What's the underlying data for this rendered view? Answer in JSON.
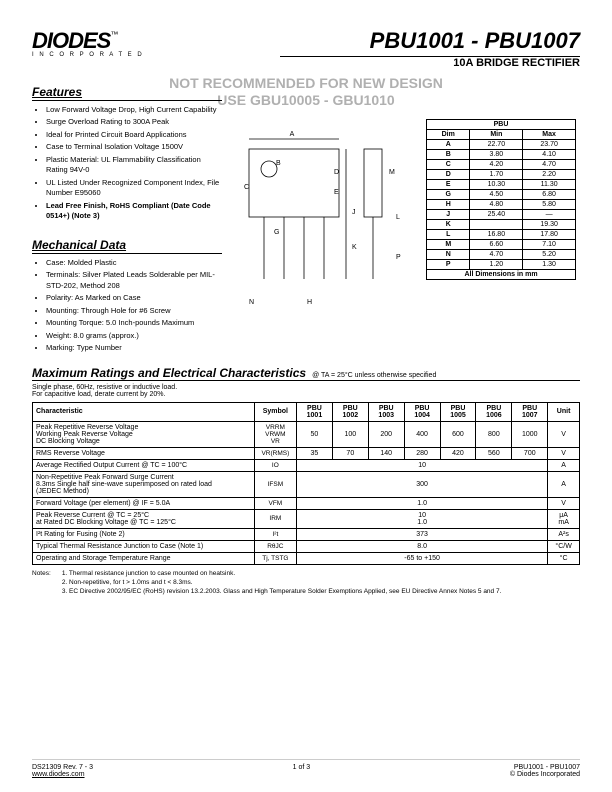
{
  "logo": {
    "name": "DIODES",
    "sub": "I N C O R P O R A T E D",
    "tm": "™"
  },
  "title": "PBU1001 - PBU1007",
  "subtitle": "10A BRIDGE RECTIFIER",
  "watermark1": "NOT RECOMMENDED FOR NEW DESIGN",
  "watermark2": "USE GBU10005 - GBU1010",
  "features_title": "Features",
  "features": [
    "Low Forward Voltage Drop, High Current Capability",
    "Surge Overload Rating to 300A Peak",
    "Ideal for Printed Circuit Board Applications",
    "Case to Terminal Isolation Voltage 1500V",
    "Plastic Material: UL Flammability Classification Rating 94V-0",
    "UL Listed Under Recognized Component Index, File Number E95060",
    "Lead Free Finish, RoHS Compliant (Date Code 0514+) (Note 3)"
  ],
  "mech_title": "Mechanical Data",
  "mech": [
    "Case: Molded Plastic",
    "Terminals: Silver Plated Leads Solderable per MIL-STD-202, Method 208",
    "Polarity: As Marked on Case",
    "Mounting: Through Hole for #6 Screw",
    "Mounting Torque: 5.0 Inch-pounds Maximum",
    "Weight: 8.0 grams (approx.)",
    "Marking: Type Number"
  ],
  "dim_hdr": {
    "name": "PBU",
    "dim": "Dim",
    "min": "Min",
    "max": "Max"
  },
  "dims": [
    {
      "d": "A",
      "min": "22.70",
      "max": "23.70"
    },
    {
      "d": "B",
      "min": "3.80",
      "max": "4.10"
    },
    {
      "d": "C",
      "min": "4.20",
      "max": "4.70"
    },
    {
      "d": "D",
      "min": "1.70",
      "max": "2.20"
    },
    {
      "d": "E",
      "min": "10.30",
      "max": "11.30"
    },
    {
      "d": "G",
      "min": "4.50",
      "max": "6.80"
    },
    {
      "d": "H",
      "min": "4.80",
      "max": "5.80"
    },
    {
      "d": "J",
      "min": "25.40",
      "max": "—"
    },
    {
      "d": "K",
      "min": "",
      "max": "19.30"
    },
    {
      "d": "L",
      "min": "16.80",
      "max": "17.80"
    },
    {
      "d": "M",
      "min": "6.60",
      "max": "7.10"
    },
    {
      "d": "N",
      "min": "4.70",
      "max": "5.20"
    },
    {
      "d": "P",
      "min": "1.20",
      "max": "1.30"
    }
  ],
  "dim_footer": "All Dimensions in mm",
  "ratings_title": "Maximum Ratings and Electrical Characteristics",
  "ratings_cond": "@ TA = 25°C unless otherwise specified",
  "ratings_note": "Single phase, 60Hz, resistive or inductive load.\nFor capacitive load, derate current by 20%.",
  "rt_hdr": {
    "char": "Characteristic",
    "sym": "Symbol",
    "parts": [
      "PBU 1001",
      "PBU 1002",
      "PBU 1003",
      "PBU 1004",
      "PBU 1005",
      "PBU 1006",
      "PBU 1007"
    ],
    "unit": "Unit"
  },
  "rows": [
    {
      "c": "Peak Repetitive Reverse Voltage\nWorking Peak Reverse Voltage\nDC Blocking Voltage",
      "s": "VRRM\nVRWM\nVR",
      "v": [
        "50",
        "100",
        "200",
        "400",
        "600",
        "800",
        "1000"
      ],
      "u": "V"
    },
    {
      "c": "RMS Reverse Voltage",
      "s": "VR(RMS)",
      "v": [
        "35",
        "70",
        "140",
        "280",
        "420",
        "560",
        "700"
      ],
      "u": "V"
    },
    {
      "c": "Average Rectified Output Current               @ TC = 100°C",
      "s": "IO",
      "span": "10",
      "u": "A"
    },
    {
      "c": "Non-Repetitive Peak Forward Surge Current\n  8.3ms Single half sine-wave superimposed on rated load\n  (JEDEC Method)",
      "s": "IFSM",
      "span": "300",
      "u": "A"
    },
    {
      "c": "Forward Voltage (per element)                  @ IF = 5.0A",
      "s": "VFM",
      "span": "1.0",
      "u": "V"
    },
    {
      "c": "Peak Reverse Current                     @ TC =   25°C\nat Rated DC Blocking Voltage           @ TC = 125°C",
      "s": "IRM",
      "span": "10\n1.0",
      "u": "μA\nmA"
    },
    {
      "c": "I²t Rating for Fusing                              (Note 2)",
      "s": "I²t",
      "span": "373",
      "u": "A²s"
    },
    {
      "c": "Typical Thermal Resistance Junction to Case      (Note 1)",
      "s": "RθJC",
      "span": "8.0",
      "u": "°C/W"
    },
    {
      "c": "Operating and Storage Temperature Range",
      "s": "Tj, TSTG",
      "span": "-65 to +150",
      "u": "°C"
    }
  ],
  "notes_label": "Notes:",
  "notes": [
    "1.  Thermal resistance junction to case mounted on heatsink.",
    "2.  Non-repetitive, for t > 1.0ms and t < 8.3ms.",
    "3.  EC Directive 2002/95/EC (RoHS) revision 13.2.2003.  Glass and High Temperature Solder Exemptions Applied, see EU Directive Annex Notes 5 and 7."
  ],
  "footer": {
    "left": "DS21309  Rev. 7 - 3",
    "mid": "1 of 3",
    "right": "PBU1001 - PBU1007",
    "url": "www.diodes.com",
    "copy": "© Diodes Incorporated"
  }
}
